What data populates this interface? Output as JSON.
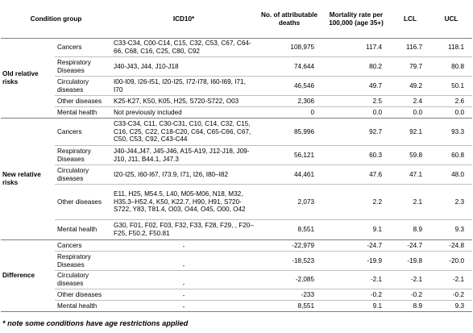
{
  "headers": {
    "group": "Condition group",
    "icd": "ICD10*",
    "deaths": "No. of attributable deaths",
    "rate": "Mortality rate per 100,000 (age 35+)",
    "lcl": "LCL",
    "ucl": "UCL"
  },
  "groups": [
    {
      "name": "Old relative risks",
      "rows": [
        {
          "condition": "Cancers",
          "icd": "C33-C34, C00-C14, C15, C32, C53, C67, C64-66, C68, C16, C25, C80, C92",
          "deaths": "108,975",
          "rate": "117.4",
          "lcl": "116.7",
          "ucl": "118.1"
        },
        {
          "condition": "Respiratory Diseases",
          "icd": "J40-J43, J44, J10-J18",
          "deaths": "74,644",
          "rate": "80.2",
          "lcl": "79.7",
          "ucl": "80.8"
        },
        {
          "condition": "Circulatory diseases",
          "icd": "I00-I09, I26-I51, I20-I25, I72-I78, I60-I69, I71, I70",
          "deaths": "46,546",
          "rate": "49.7",
          "lcl": "49.2",
          "ucl": "50.1"
        },
        {
          "condition": "Other diseases",
          "icd": "K25-K27, K50, K05, H25, S720-S722, O03",
          "deaths": "2,306",
          "rate": "2.5",
          "lcl": "2.4",
          "ucl": "2.6"
        },
        {
          "condition": "Mental health",
          "icd": "Not previously included",
          "deaths": "0",
          "rate": "0.0",
          "lcl": "0.0",
          "ucl": "0.0"
        }
      ]
    },
    {
      "name": "New relative risks",
      "rows": [
        {
          "condition": "Cancers",
          "icd": "C33-C34, C11, C30-C31, C10, C14, C32, C15, C16, C25, C22, C18-C20, C64, C65-C66, C67, C50, C53, C92, C43-C44",
          "deaths": "85,996",
          "rate": "92.7",
          "lcl": "92.1",
          "ucl": "93.3"
        },
        {
          "condition": "Respiratory Diseases",
          "icd": "J40-J44,J47, J45-J46,   A15-A19, J12-J18, J09-J10, J11, B44.1, J47.3",
          "deaths": "56,121",
          "rate": "60.3",
          "lcl": "59.8",
          "ucl": "60.8"
        },
        {
          "condition": "Circulatory diseases",
          "icd": "I20-I25, I60-I67, I73.9, I71, I26, I80–I82",
          "deaths": "44,461",
          "rate": "47.6",
          "lcl": "47.1",
          "ucl": "48.0"
        },
        {
          "condition": "Other diseases",
          "icd": "E11, H25, M54.5, L40, M05-M06, N18, M32, H35.3–H52.4, K50, K22.7, H90, H91, S720-S722, Y83, T81.4, O03, O44, O45, O00, O42",
          "deaths": "2,073",
          "rate": "2.2",
          "lcl": "2.1",
          "ucl": "2.3"
        },
        {
          "condition": "Mental health",
          "icd": "G30, F01, F02, F03, F32, F33, F28, F29, , F20–F25, F50.2, F50.81",
          "deaths": "8,551",
          "rate": "9.1",
          "lcl": "8.9",
          "ucl": "9.3"
        }
      ]
    },
    {
      "name": "Difference",
      "rows": [
        {
          "condition": "Cancers",
          "icd": "-",
          "deaths": "-22,979",
          "rate": "-24.7",
          "lcl": "-24.7",
          "ucl": "-24.8"
        },
        {
          "condition": "Respiratory Diseases",
          "icd": "-",
          "deaths": "-18,523",
          "rate": "-19.9",
          "lcl": "-19.8",
          "ucl": "-20.0"
        },
        {
          "condition": "Circulatory diseases",
          "icd": "-",
          "deaths": "-2,085",
          "rate": "-2.1",
          "lcl": "-2.1",
          "ucl": "-2.1"
        },
        {
          "condition": "Other diseases",
          "icd": "-",
          "deaths": "-233",
          "rate": "-0.2",
          "lcl": "-0.2",
          "ucl": "-0.2"
        },
        {
          "condition": "Mental health",
          "icd": "-",
          "deaths": "8,551",
          "rate": "9.1",
          "lcl": "8.9",
          "ucl": "9.3"
        }
      ]
    }
  ],
  "note": "* note some conditions have age restrictions applied"
}
